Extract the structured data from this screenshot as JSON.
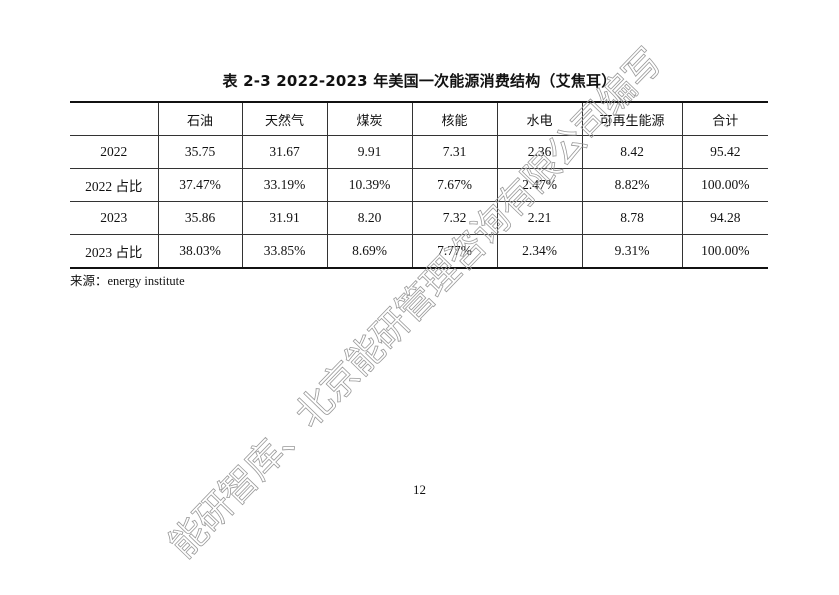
{
  "title": "表 2-3 2022-2023 年美国一次能源消费结构（艾焦耳）",
  "table": {
    "headers": [
      "",
      "石油",
      "天然气",
      "煤炭",
      "核能",
      "水电",
      "可再生能源",
      "合计"
    ],
    "rows": [
      [
        "2022",
        "35.75",
        "31.67",
        "9.91",
        "7.31",
        "2.36",
        "8.42",
        "95.42"
      ],
      [
        "2022 占比",
        "37.47%",
        "33.19%",
        "10.39%",
        "7.67%",
        "2.47%",
        "8.82%",
        "100.00%"
      ],
      [
        "2023",
        "35.86",
        "31.91",
        "8.20",
        "7.32",
        "2.21",
        "8.78",
        "94.28"
      ],
      [
        "2023 占比",
        "38.03%",
        "33.85%",
        "8.69%",
        "7.77%",
        "2.34%",
        "9.31%",
        "100.00%"
      ]
    ]
  },
  "source": "来源：energy institute",
  "page_number": "12",
  "watermark": "能研智库、北京能研管理咨询有限公司编写"
}
